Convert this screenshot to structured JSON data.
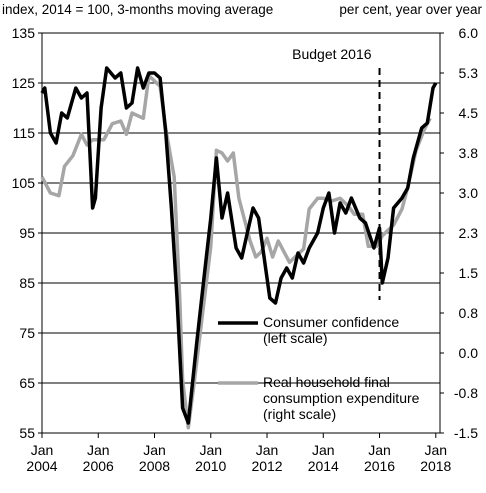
{
  "chart_data": {
    "type": "line",
    "left_axis_label": "index, 2014 = 100, 3-months moving average",
    "right_axis_label": "per cent, year over year",
    "annotation": {
      "text": "Budget 2016",
      "x": 2016
    },
    "xlim": [
      2004,
      2018.15
    ],
    "xticks": [
      {
        "value": 2004,
        "label": "Jan\n2004"
      },
      {
        "value": 2006,
        "label": "Jan\n2006"
      },
      {
        "value": 2008,
        "label": "Jan\n2008"
      },
      {
        "value": 2010,
        "label": "Jan\n2010"
      },
      {
        "value": 2012,
        "label": "Jan\n2012"
      },
      {
        "value": 2014,
        "label": "Jan\n2014"
      },
      {
        "value": 2016,
        "label": "Jan\n2016"
      },
      {
        "value": 2018,
        "label": "Jan\n2018"
      }
    ],
    "ylim": [
      55,
      135
    ],
    "yticks": [
      55,
      65,
      75,
      85,
      95,
      105,
      115,
      125,
      135
    ],
    "y2lim": [
      -1.5,
      6
    ],
    "y2ticks": [
      -1.5,
      {
        "value": -0.75,
        "label": "-0.8"
      },
      {
        "value": 0,
        "label": "0.0"
      },
      {
        "value": 0.75,
        "label": "0.8"
      },
      1.5,
      {
        "value": 2.25,
        "label": "2.3"
      },
      {
        "value": 3,
        "label": "3.0"
      },
      {
        "value": 3.75,
        "label": "3.8"
      },
      4.5,
      {
        "value": 5.25,
        "label": "5.3"
      },
      {
        "value": 6,
        "label": "6.0"
      }
    ],
    "grid": true,
    "series": [
      {
        "name": "Real household final\nconsumption expenditure\n(right scale)",
        "color": "#a6a6a6",
        "axis": "y2",
        "x": [
          2004.0,
          2004.3,
          2004.6,
          2004.8,
          2005.1,
          2005.4,
          2005.6,
          2005.8,
          2006.2,
          2006.5,
          2006.8,
          2007.0,
          2007.2,
          2007.6,
          2007.8,
          2008.2,
          2008.4,
          2008.7,
          2008.9,
          2009.0,
          2009.2,
          2009.4,
          2009.7,
          2010.0,
          2010.2,
          2010.4,
          2010.6,
          2010.8,
          2011.0,
          2011.2,
          2011.4,
          2011.6,
          2011.8,
          2012.0,
          2012.2,
          2012.4,
          2012.6,
          2012.8,
          2013.0,
          2013.3,
          2013.5,
          2013.8,
          2014.0,
          2014.3,
          2014.6,
          2014.9,
          2015.1,
          2015.4,
          2015.6,
          2015.9,
          2016.1,
          2016.5,
          2016.8,
          2017.0,
          2017.3,
          2017.6,
          2017.8
        ],
        "values": [
          3.3,
          3.0,
          2.95,
          3.5,
          3.7,
          4.1,
          3.9,
          4.0,
          4.0,
          4.3,
          4.35,
          4.1,
          4.5,
          4.4,
          5.2,
          5.0,
          4.2,
          3.3,
          1.0,
          -0.5,
          -1.4,
          -0.6,
          0.7,
          2.0,
          3.8,
          3.75,
          3.6,
          3.75,
          2.9,
          2.5,
          2.1,
          1.8,
          1.9,
          2.15,
          1.8,
          2.1,
          1.9,
          1.7,
          1.8,
          1.95,
          2.7,
          2.9,
          2.9,
          2.85,
          2.9,
          2.75,
          2.6,
          2.6,
          2.0,
          2.0,
          2.2,
          2.4,
          2.7,
          3.1,
          3.8,
          4.2,
          4.4
        ]
      },
      {
        "name": "Consumer confidence\n(left scale)",
        "color": "#000000",
        "x": [
          2004.0,
          2004.1,
          2004.3,
          2004.5,
          2004.7,
          2004.9,
          2005.2,
          2005.4,
          2005.6,
          2005.8,
          2005.9,
          2006.1,
          2006.3,
          2006.6,
          2006.8,
          2007.0,
          2007.2,
          2007.4,
          2007.6,
          2007.8,
          2008.0,
          2008.2,
          2008.4,
          2008.6,
          2008.8,
          2009.0,
          2009.2,
          2009.5,
          2009.8,
          2010.0,
          2010.2,
          2010.4,
          2010.6,
          2010.9,
          2011.1,
          2011.3,
          2011.5,
          2011.7,
          2011.9,
          2012.1,
          2012.3,
          2012.5,
          2012.7,
          2012.9,
          2013.1,
          2013.3,
          2013.5,
          2013.8,
          2014.0,
          2014.2,
          2014.4,
          2014.6,
          2014.8,
          2015.0,
          2015.3,
          2015.5,
          2015.8,
          2016.0,
          2016.1,
          2016.3,
          2016.5,
          2016.8,
          2017.0,
          2017.2,
          2017.5,
          2017.7,
          2017.9,
          2018.0
        ],
        "values": [
          123,
          124,
          115,
          113,
          119,
          118,
          124,
          122,
          123,
          100,
          102,
          120,
          128,
          126,
          127,
          120,
          121,
          128,
          124,
          127,
          127,
          126,
          115,
          100,
          82,
          60,
          57,
          73,
          88,
          98,
          110,
          98,
          103,
          92,
          90,
          95,
          100,
          98,
          90,
          82,
          81,
          86,
          88,
          86,
          91,
          89,
          92,
          95,
          100,
          103,
          95,
          101,
          99,
          102,
          98,
          97,
          92,
          96,
          85,
          90,
          100,
          102,
          104,
          110,
          116,
          117,
          124,
          125
        ]
      }
    ]
  }
}
